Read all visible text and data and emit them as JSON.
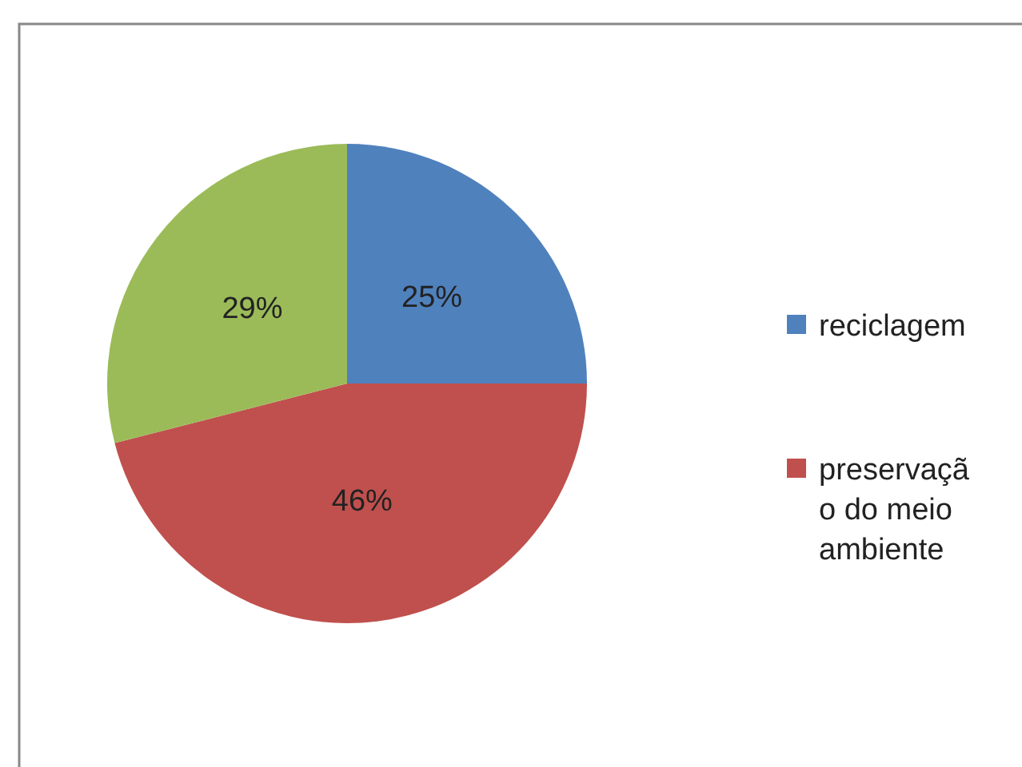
{
  "chart_data": {
    "type": "pie",
    "categories": [
      "reciclagem",
      "preservação do meio ambiente",
      null
    ],
    "values": [
      25,
      46,
      29
    ],
    "colors": [
      "#4f81bd",
      "#c0504d",
      "#9bbb59"
    ],
    "value_labels": [
      "25%",
      "46%",
      "29%"
    ],
    "legend": "right"
  }
}
